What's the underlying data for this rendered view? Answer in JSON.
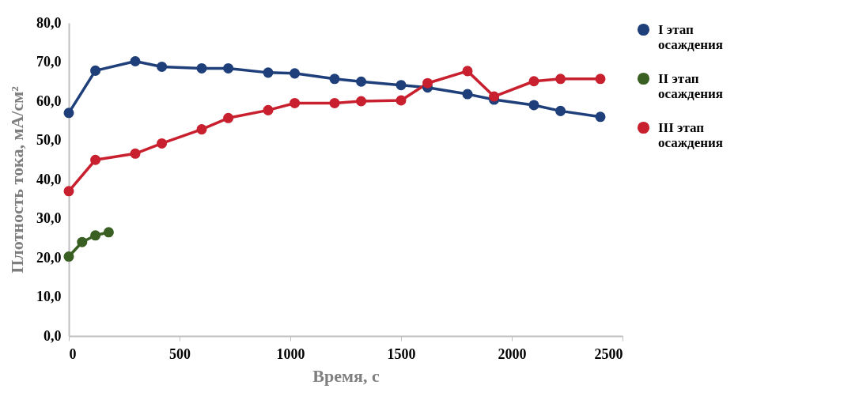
{
  "chart_data": {
    "type": "line",
    "xlabel": "Время, с",
    "ylabel": "Плотность тока, мА/см²",
    "xlim": [
      0,
      2500
    ],
    "xticks": [
      0,
      500,
      1000,
      1500,
      2000,
      2500
    ],
    "ylim": [
      0,
      80
    ],
    "yticks": [
      {
        "value": 0,
        "label": "0,0"
      },
      {
        "value": 10,
        "label": "10,0"
      },
      {
        "value": 20,
        "label": "20,0"
      },
      {
        "value": 30,
        "label": "30,0"
      },
      {
        "value": 40,
        "label": "40,0"
      },
      {
        "value": 50,
        "label": "50,0"
      },
      {
        "value": 60,
        "label": "60,0"
      },
      {
        "value": 70,
        "label": "70,0"
      },
      {
        "value": 80,
        "label": "80,0"
      }
    ],
    "grid": false,
    "legend": "right",
    "marker": "circle",
    "line_style": "solid",
    "series": [
      {
        "name": "I этап осаждения",
        "color": "#1f3f7a",
        "x": [
          0,
          120,
          300,
          420,
          600,
          720,
          900,
          1020,
          1200,
          1320,
          1500,
          1620,
          1800,
          1920,
          2100,
          2220,
          2400
        ],
        "values": [
          57,
          67.8,
          70.2,
          68.8,
          68.4,
          68.4,
          67.3,
          67.1,
          65.7,
          65,
          64.1,
          63.5,
          61.8,
          60.4,
          59,
          57.5,
          56
        ]
      },
      {
        "name": "II этап осаждения",
        "color": "#3a5f23",
        "x": [
          0,
          60,
          120,
          180
        ],
        "values": [
          20.3,
          24,
          25.7,
          26.5
        ]
      },
      {
        "name": "III этап осаждения",
        "color": "#c8202e",
        "x": [
          0,
          120,
          300,
          420,
          600,
          720,
          900,
          1020,
          1200,
          1320,
          1500,
          1620,
          1800,
          1920,
          2100,
          2220,
          2400
        ],
        "values": [
          37,
          45,
          46.6,
          49.2,
          52.8,
          55.7,
          57.7,
          59.5,
          59.5,
          60,
          60.2,
          64.6,
          67.7,
          61.2,
          65.1,
          65.7,
          65.7
        ]
      }
    ]
  }
}
